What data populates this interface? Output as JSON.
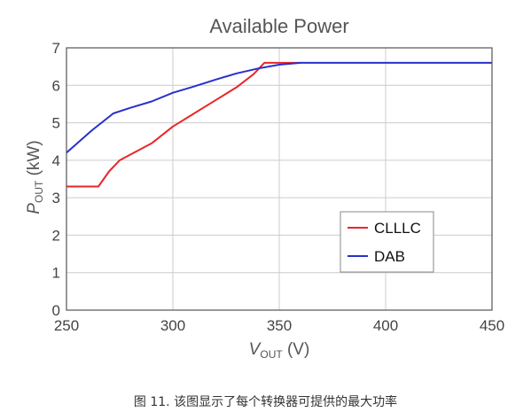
{
  "chart_data": {
    "type": "line",
    "title": "Available Power",
    "xlabel": {
      "main": "V",
      "sub": "OUT",
      "unit": " (V)"
    },
    "ylabel": {
      "main": "P",
      "sub": "OUT",
      "unit": " (kW)"
    },
    "xlim": [
      250,
      450
    ],
    "ylim": [
      0,
      7
    ],
    "xticks": [
      250,
      300,
      350,
      400,
      450
    ],
    "yticks": [
      0,
      1,
      2,
      3,
      4,
      5,
      6,
      7
    ],
    "grid": true,
    "legend_position": "lower-right",
    "series": [
      {
        "name": "CLLLC",
        "color": "#e8262a",
        "x": [
          250,
          265,
          270,
          275,
          290,
          300,
          310,
          320,
          330,
          338,
          343,
          350,
          360
        ],
        "y": [
          3.3,
          3.3,
          3.7,
          4.0,
          4.45,
          4.9,
          5.25,
          5.6,
          5.95,
          6.3,
          6.6,
          6.6,
          6.6
        ]
      },
      {
        "name": "DAB",
        "color": "#2a2fcc",
        "x": [
          250,
          262,
          272,
          280,
          290,
          300,
          310,
          320,
          330,
          340,
          350,
          360,
          400,
          450
        ],
        "y": [
          4.2,
          4.8,
          5.25,
          5.4,
          5.57,
          5.8,
          5.97,
          6.15,
          6.32,
          6.45,
          6.55,
          6.6,
          6.6,
          6.6
        ]
      }
    ]
  },
  "caption": "图 11. 该图显示了每个转换器可提供的最大功率"
}
